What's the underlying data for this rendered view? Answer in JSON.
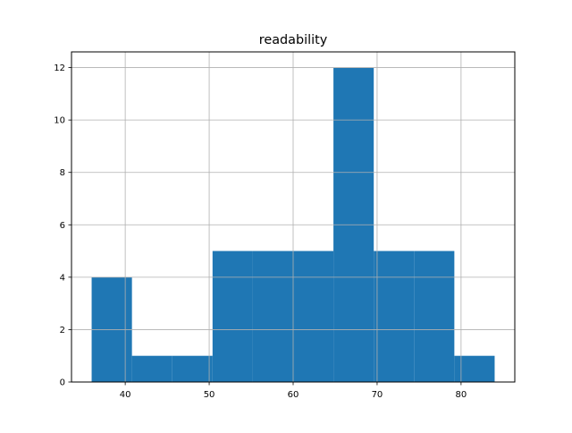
{
  "chart_data": {
    "type": "bar",
    "subtype": "histogram",
    "title": "readability",
    "xlabel": "",
    "ylabel": "",
    "bin_edges": [
      36,
      40.8,
      45.6,
      50.4,
      55.2,
      60,
      64.8,
      69.6,
      74.4,
      79.2,
      84
    ],
    "counts": [
      4,
      1,
      1,
      5,
      5,
      5,
      12,
      5,
      5,
      1
    ],
    "xlim": [
      33.6,
      86.4
    ],
    "ylim": [
      0,
      12.6
    ],
    "xticks": [
      40,
      50,
      60,
      70,
      80
    ],
    "yticks": [
      0,
      2,
      4,
      6,
      8,
      10,
      12
    ],
    "grid": true,
    "legend": "none",
    "colors": {
      "bar": "#1f77b4",
      "grid": "#b0b0b0"
    }
  }
}
